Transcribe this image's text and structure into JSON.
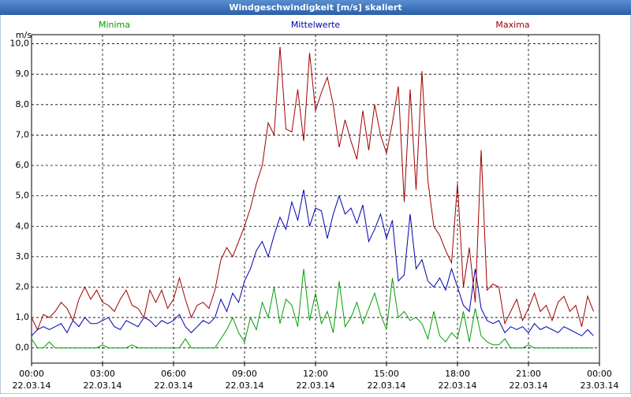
{
  "chart_data": {
    "type": "line",
    "title": "Windgeschwindigkeit [m/s] skaliert",
    "y_label": "m/s",
    "x": [
      0,
      0.25,
      0.5,
      0.75,
      1,
      1.25,
      1.5,
      1.75,
      2,
      2.25,
      2.5,
      2.75,
      3,
      3.25,
      3.5,
      3.75,
      4,
      4.25,
      4.5,
      4.75,
      5,
      5.25,
      5.5,
      5.75,
      6,
      6.25,
      6.5,
      6.75,
      7,
      7.25,
      7.5,
      7.75,
      8,
      8.25,
      8.5,
      8.75,
      9,
      9.25,
      9.5,
      9.75,
      10,
      10.25,
      10.5,
      10.75,
      11,
      11.25,
      11.5,
      11.75,
      12,
      12.25,
      12.5,
      12.75,
      13,
      13.25,
      13.5,
      13.75,
      14,
      14.25,
      14.5,
      14.75,
      15,
      15.25,
      15.5,
      15.75,
      16,
      16.25,
      16.5,
      16.75,
      17,
      17.25,
      17.5,
      17.75,
      18,
      18.25,
      18.5,
      18.75,
      19,
      19.25,
      19.5,
      19.75,
      20,
      20.25,
      20.5,
      20.75,
      21,
      21.25,
      21.5,
      21.75,
      22,
      22.25,
      22.5,
      22.75,
      23,
      23.25,
      23.5,
      23.75
    ],
    "series": [
      {
        "name": "Minima",
        "color": "#00a000",
        "values": [
          0.3,
          0,
          0,
          0.2,
          0,
          0,
          0,
          0,
          0,
          0,
          0,
          0,
          0.1,
          0,
          0,
          0,
          0,
          0.1,
          0,
          0,
          0,
          0,
          0,
          0,
          0,
          0,
          0.3,
          0,
          0,
          0,
          0,
          0,
          0.3,
          0.6,
          1.0,
          0.5,
          0.2,
          1.0,
          0.6,
          1.5,
          1.0,
          2.0,
          0.8,
          1.6,
          1.4,
          0.7,
          2.6,
          0.9,
          1.8,
          0.8,
          1.2,
          0.5,
          2.2,
          0.7,
          1.0,
          1.5,
          0.8,
          1.3,
          1.8,
          1.1,
          0.6,
          2.3,
          1.0,
          1.2,
          0.9,
          1.0,
          0.8,
          0.3,
          1.2,
          0.4,
          0.2,
          0.5,
          0.3,
          1.2,
          0.2,
          1.3,
          0.4,
          0.2,
          0.1,
          0.1,
          0.3,
          0,
          0,
          0,
          0.1,
          0,
          0,
          0,
          0,
          0,
          0,
          0,
          0,
          0,
          0,
          0
        ]
      },
      {
        "name": "Mittelwerte",
        "color": "#0000b0",
        "values": [
          0.4,
          0.6,
          0.7,
          0.6,
          0.7,
          0.8,
          0.5,
          0.9,
          0.7,
          1.0,
          0.8,
          0.8,
          0.9,
          1.0,
          0.7,
          0.6,
          0.9,
          0.8,
          0.7,
          1.0,
          0.9,
          0.7,
          0.9,
          0.8,
          0.9,
          1.1,
          0.7,
          0.5,
          0.7,
          0.9,
          0.8,
          1.0,
          1.6,
          1.2,
          1.8,
          1.5,
          2.2,
          2.6,
          3.2,
          3.5,
          3.0,
          3.7,
          4.3,
          3.9,
          4.8,
          4.2,
          5.2,
          4.0,
          4.6,
          4.5,
          3.6,
          4.4,
          5.0,
          4.4,
          4.6,
          4.1,
          4.7,
          3.5,
          3.9,
          4.4,
          3.6,
          4.2,
          2.2,
          2.4,
          4.4,
          2.6,
          2.9,
          2.2,
          2.0,
          2.3,
          1.9,
          2.6,
          2.0,
          1.4,
          1.2,
          2.6,
          1.3,
          0.9,
          0.8,
          0.9,
          0.5,
          0.7,
          0.6,
          0.7,
          0.5,
          0.8,
          0.6,
          0.7,
          0.6,
          0.5,
          0.7,
          0.6,
          0.5,
          0.4,
          0.6,
          0.4
        ]
      },
      {
        "name": "Maxima",
        "color": "#a00000",
        "values": [
          1.0,
          0.6,
          1.1,
          1.0,
          1.2,
          1.5,
          1.3,
          0.9,
          1.6,
          2.0,
          1.6,
          1.9,
          1.5,
          1.4,
          1.2,
          1.6,
          1.9,
          1.4,
          1.3,
          1.0,
          1.9,
          1.5,
          1.9,
          1.3,
          1.6,
          2.3,
          1.6,
          1.0,
          1.4,
          1.5,
          1.3,
          1.9,
          2.9,
          3.3,
          3.0,
          3.5,
          4.0,
          4.6,
          5.4,
          6.0,
          7.4,
          7.0,
          9.9,
          7.2,
          7.1,
          8.5,
          6.8,
          9.7,
          7.8,
          8.4,
          8.9,
          8.0,
          6.6,
          7.5,
          6.8,
          6.2,
          7.8,
          6.5,
          8.0,
          7.0,
          6.4,
          7.4,
          8.6,
          4.8,
          8.5,
          5.2,
          9.1,
          5.5,
          4.0,
          3.7,
          3.2,
          2.8,
          5.4,
          2.0,
          3.3,
          1.5,
          6.5,
          1.9,
          2.1,
          2.0,
          0.8,
          1.2,
          1.6,
          0.9,
          1.3,
          1.8,
          1.2,
          1.4,
          0.9,
          1.5,
          1.7,
          1.2,
          1.4,
          0.7,
          1.7,
          1.2
        ]
      }
    ],
    "xlim": [
      0,
      24
    ],
    "xticks": [
      {
        "value": 0,
        "label": "00:00",
        "date": "22.03.14"
      },
      {
        "value": 3,
        "label": "03:00",
        "date": "22.03.14"
      },
      {
        "value": 6,
        "label": "06:00",
        "date": "22.03.14"
      },
      {
        "value": 9,
        "label": "09:00",
        "date": "22.03.14"
      },
      {
        "value": 12,
        "label": "12:00",
        "date": "22.03.14"
      },
      {
        "value": 15,
        "label": "15:00",
        "date": "22.03.14"
      },
      {
        "value": 18,
        "label": "18:00",
        "date": "22.03.14"
      },
      {
        "value": 21,
        "label": "21:00",
        "date": "22.03.14"
      },
      {
        "value": 24,
        "label": "00:00",
        "date": "23.03.14"
      }
    ],
    "ylim": [
      -0.5,
      10.3
    ],
    "yticks": [
      {
        "value": 0,
        "label": "0,0"
      },
      {
        "value": 1,
        "label": "1,0"
      },
      {
        "value": 2,
        "label": "2,0"
      },
      {
        "value": 3,
        "label": "3,0"
      },
      {
        "value": 4,
        "label": "4,0"
      },
      {
        "value": 5,
        "label": "5,0"
      },
      {
        "value": 6,
        "label": "6,0"
      },
      {
        "value": 7,
        "label": "7,0"
      },
      {
        "value": 8,
        "label": "8,0"
      },
      {
        "value": 9,
        "label": "9,0"
      },
      {
        "value": 10,
        "label": "10,0"
      }
    ],
    "grid": true
  }
}
